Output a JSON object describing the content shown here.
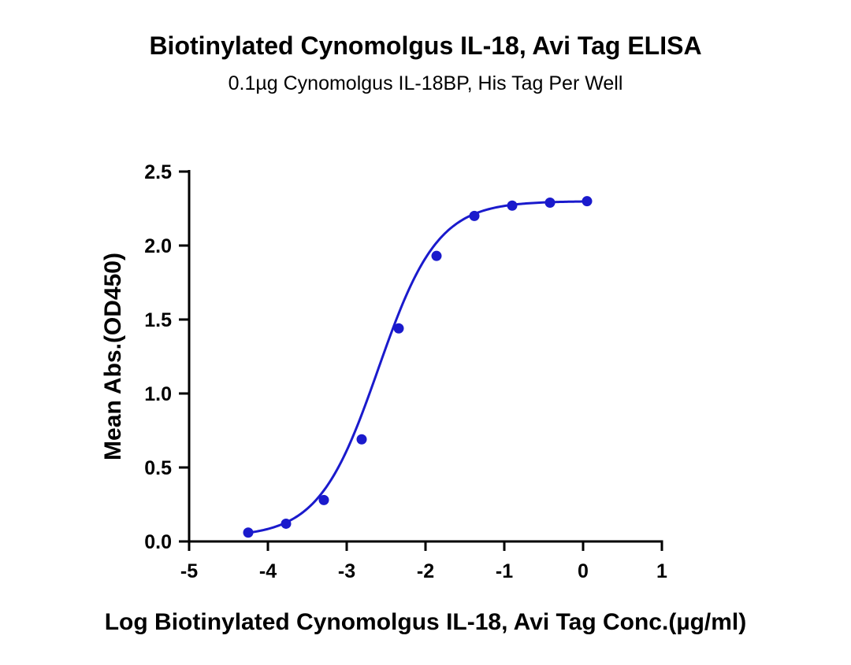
{
  "chart_data": {
    "type": "scatter",
    "title": "Biotinylated Cynomolgus IL-18, Avi Tag ELISA",
    "subtitle": "0.1µg Cynomolgus IL-18BP, His Tag Per Well",
    "xlabel": "Log Biotinylated Cynomolgus IL-18, Avi Tag Conc.(µg/ml)",
    "ylabel": "Mean Abs.(OD450)",
    "xlim": [
      -5,
      1
    ],
    "ylim": [
      0,
      2.5
    ],
    "xticks": [
      "-5",
      "-4",
      "-3",
      "-2",
      "-1",
      "0",
      "1"
    ],
    "yticks": [
      "0.0",
      "0.5",
      "1.0",
      "1.5",
      "2.0",
      "2.5"
    ],
    "grid": false,
    "series": [
      {
        "x": [
          -4.25,
          -3.77,
          -3.29,
          -2.81,
          -2.34,
          -1.86,
          -1.38,
          -0.9,
          -0.42,
          0.05
        ],
        "y": [
          0.06,
          0.12,
          0.28,
          0.69,
          1.44,
          1.93,
          2.2,
          2.27,
          2.29,
          2.3
        ],
        "color": "#1a1acc",
        "fit": "sigmoidal 4PL curve"
      }
    ]
  }
}
